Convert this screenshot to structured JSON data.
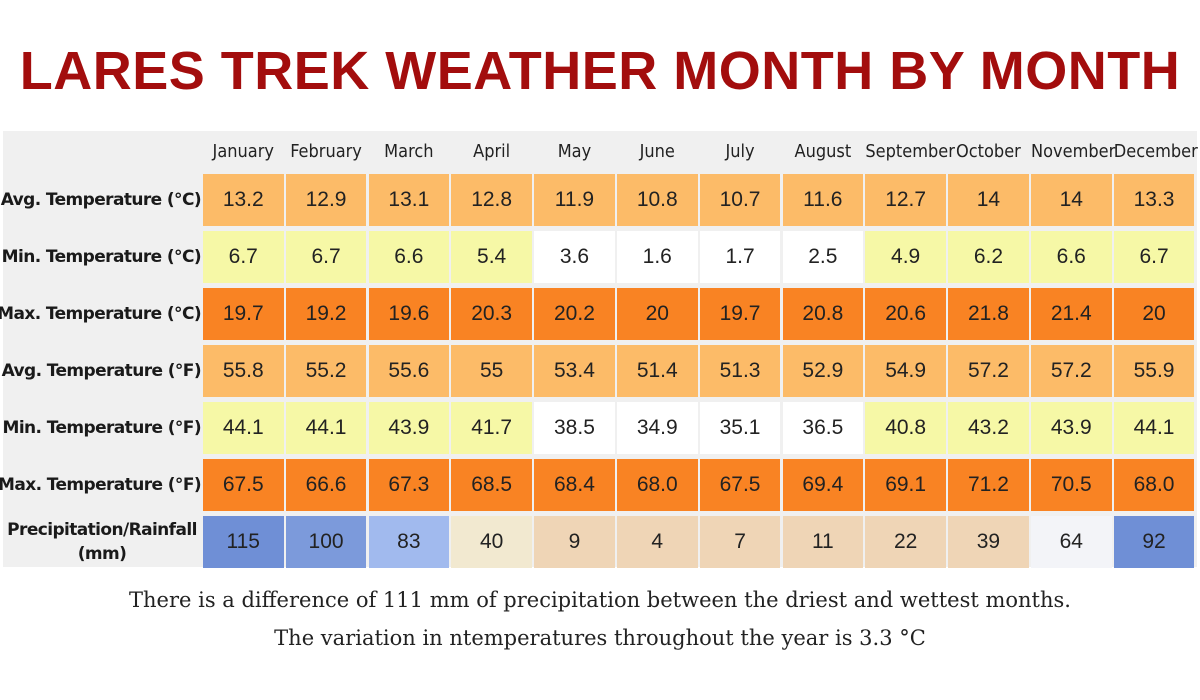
{
  "title": "LARES TREK WEATHER MONTH BY MONTH",
  "chart_data": {
    "type": "table",
    "months": [
      "January",
      "February",
      "March",
      "April",
      "May",
      "June",
      "July",
      "August",
      "September",
      "October",
      "November",
      "December"
    ],
    "rows": [
      {
        "label": "Avg. Temperature (°C)",
        "values": [
          "13.2",
          "12.9",
          "13.1",
          "12.8",
          "11.9",
          "10.8",
          "10.7",
          "11.6",
          "12.7",
          "14",
          "14",
          "13.3"
        ],
        "colors": [
          "#fcbb68",
          "#fcbb68",
          "#fcbb68",
          "#fcbb68",
          "#fcbb68",
          "#fcbb68",
          "#fcbb68",
          "#fcbb68",
          "#fcbb68",
          "#fcbb68",
          "#fcbb68",
          "#fcbb68"
        ]
      },
      {
        "label": "Min. Temperature (°C)",
        "values": [
          "6.7",
          "6.7",
          "6.6",
          "5.4",
          "3.6",
          "1.6",
          "1.7",
          "2.5",
          "4.9",
          "6.2",
          "6.6",
          "6.7"
        ],
        "colors": [
          "#f6f8a6",
          "#f6f8a6",
          "#f6f8a6",
          "#f6f8a6",
          "#ffffff",
          "#ffffff",
          "#ffffff",
          "#ffffff",
          "#f6f8a6",
          "#f6f8a6",
          "#f6f8a6",
          "#f6f8a6"
        ]
      },
      {
        "label": "Max. Temperature (°C)",
        "values": [
          "19.7",
          "19.2",
          "19.6",
          "20.3",
          "20.2",
          "20",
          "19.7",
          "20.8",
          "20.6",
          "21.8",
          "21.4",
          "20"
        ],
        "colors": [
          "#f98323",
          "#f98323",
          "#f98323",
          "#f98323",
          "#f98323",
          "#f98323",
          "#f98323",
          "#f98323",
          "#f98323",
          "#f98323",
          "#f98323",
          "#f98323"
        ]
      },
      {
        "label": "Avg. Temperature (°F)",
        "values": [
          "55.8",
          "55.2",
          "55.6",
          "55",
          "53.4",
          "51.4",
          "51.3",
          "52.9",
          "54.9",
          "57.2",
          "57.2",
          "55.9"
        ],
        "colors": [
          "#fcbb68",
          "#fcbb68",
          "#fcbb68",
          "#fcbb68",
          "#fcbb68",
          "#fcbb68",
          "#fcbb68",
          "#fcbb68",
          "#fcbb68",
          "#fcbb68",
          "#fcbb68",
          "#fcbb68"
        ]
      },
      {
        "label": "Min. Temperature (°F)",
        "values": [
          "44.1",
          "44.1",
          "43.9",
          "41.7",
          "38.5",
          "34.9",
          "35.1",
          "36.5",
          "40.8",
          "43.2",
          "43.9",
          "44.1"
        ],
        "colors": [
          "#f6f8a6",
          "#f6f8a6",
          "#f6f8a6",
          "#f6f8a6",
          "#ffffff",
          "#ffffff",
          "#ffffff",
          "#ffffff",
          "#f6f8a6",
          "#f6f8a6",
          "#f6f8a6",
          "#f6f8a6"
        ]
      },
      {
        "label": "Max. Temperature (°F)",
        "values": [
          "67.5",
          "66.6",
          "67.3",
          "68.5",
          "68.4",
          "68.0",
          "67.5",
          "69.4",
          "69.1",
          "71.2",
          "70.5",
          "68.0"
        ],
        "colors": [
          "#f98323",
          "#f98323",
          "#f98323",
          "#f98323",
          "#f98323",
          "#f98323",
          "#f98323",
          "#f98323",
          "#f98323",
          "#f98323",
          "#f98323",
          "#f98323"
        ]
      },
      {
        "label": "Precipitation/Rainfall (mm)",
        "values": [
          "115",
          "100",
          "83",
          "40",
          "9",
          "4",
          "7",
          "11",
          "22",
          "39",
          "64",
          "92"
        ],
        "colors": [
          "#6f8fd6",
          "#7c9adb",
          "#a1baee",
          "#f2e9d0",
          "#efd5b6",
          "#efd5b6",
          "#efd5b6",
          "#efd5b6",
          "#efd5b6",
          "#efd5b6",
          "#f3f4f8",
          "#6f8fd6"
        ]
      }
    ]
  },
  "notes": {
    "line1": "There is a difference of 111 mm of precipitation between the driest and wettest months.",
    "line2": "The variation in ntemperatures throughout the year is 3.3 °C"
  }
}
